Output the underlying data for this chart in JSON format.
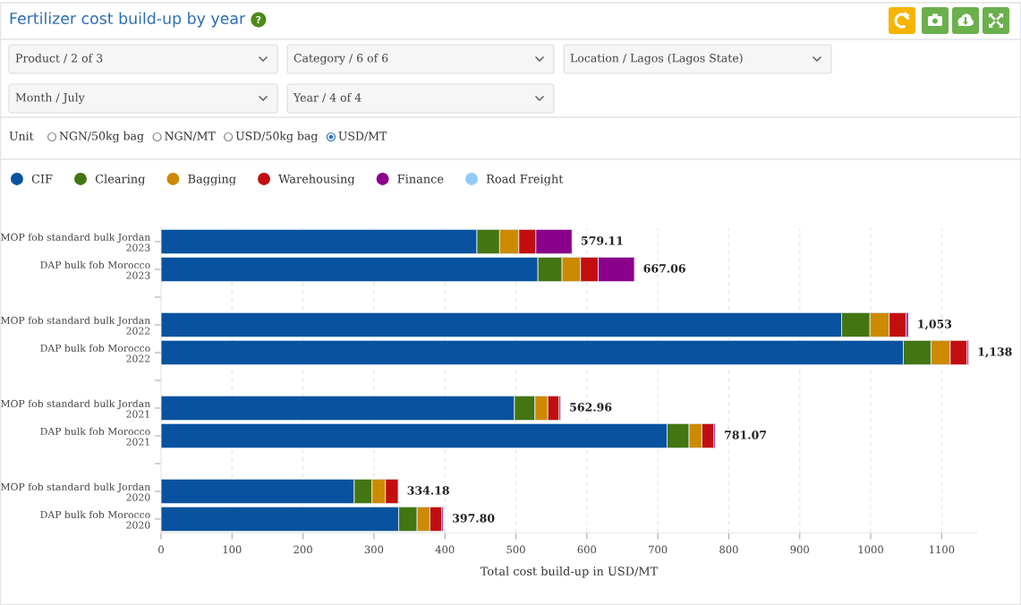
{
  "chart_data": {
    "type": "bar",
    "orientation": "horizontal",
    "stacked": true,
    "title": "Fertilizer cost build-up by year",
    "xlabel": "Total cost build-up in USD/MT",
    "categories": [
      "MOP fob standard bulk Jordan\n2023",
      "DAP bulk fob Morocco\n2023",
      null,
      "MOP fob standard bulk Jordan\n2022",
      "DAP bulk fob Morocco\n2022",
      null,
      "MOP fob standard bulk Jordan\n2021",
      "DAP bulk fob Morocco\n2021",
      null,
      "MOP fob standard bulk Jordan\n2020",
      "DAP bulk fob Morocco\n2020"
    ],
    "series": [
      {
        "name": "CIF",
        "color": "#08529f",
        "values": [
          445.11,
          531.06,
          null,
          959,
          1046,
          null,
          497.96,
          713.07,
          null,
          272.18,
          334.8
        ]
      },
      {
        "name": "Clearing",
        "color": "#437512",
        "values": [
          32,
          34,
          null,
          40,
          39,
          null,
          29,
          31,
          null,
          25,
          26
        ]
      },
      {
        "name": "Bagging",
        "color": "#cc8a00",
        "values": [
          27,
          26,
          null,
          27,
          27,
          null,
          18,
          18,
          null,
          19,
          18
        ]
      },
      {
        "name": "Warehousing",
        "color": "#c20e0e",
        "values": [
          24,
          25,
          null,
          24,
          24,
          null,
          16,
          17,
          null,
          18,
          17
        ]
      },
      {
        "name": "Finance",
        "color": "#8b008b",
        "values": [
          51,
          51,
          null,
          3,
          2,
          null,
          2,
          2,
          null,
          null,
          2
        ]
      },
      {
        "name": "Road Freight",
        "color": "#90caf9",
        "values": [
          null,
          null,
          null,
          null,
          null,
          null,
          null,
          null,
          null,
          null,
          null
        ]
      }
    ],
    "totals": [
      "579.11",
      "667.06",
      null,
      "1,053",
      "1,138",
      null,
      "562.96",
      "781.07",
      null,
      "334.18",
      "397.80"
    ],
    "xlim": [
      0,
      1150
    ],
    "xticks": [
      0,
      100,
      200,
      300,
      400,
      500,
      600,
      700,
      800,
      900,
      1000,
      1100
    ],
    "grid": "x",
    "legend": "top left",
    "annotations": [
      "Product / 2 of 3",
      "Category / 6 of 6",
      "Location / Lagos (Lagos State)",
      "Month / July",
      "Year / 4 of 4",
      "Unit",
      "NGN/50kg bag",
      "NGN/MT",
      "USD/50kg bag",
      "USD/MT"
    ]
  }
}
